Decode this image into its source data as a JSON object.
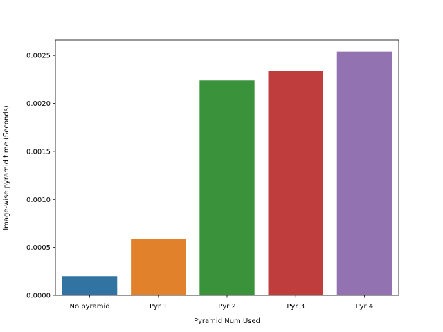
{
  "chart_data": {
    "type": "bar",
    "xlabel": "Pyramid Num Used",
    "ylabel": "Image-wise pyramid time (Seconds)",
    "categories": [
      "No pyramid",
      "Pyr 1",
      "Pyr 2",
      "Pyr 3",
      "Pyr 4"
    ],
    "values": [
      0.0002,
      0.00059,
      0.00224,
      0.00234,
      0.00254
    ],
    "colors": [
      "#3274a1",
      "#e1812c",
      "#3a923a",
      "#c03d3e",
      "#9372b2"
    ],
    "ylim": [
      0,
      0.00266
    ],
    "yticks": [
      0,
      0.0005,
      0.001,
      0.0015,
      0.002,
      0.0025
    ],
    "ytick_labels": [
      "0.0000",
      "0.0005",
      "0.0010",
      "0.0015",
      "0.0020",
      "0.0025"
    ],
    "grid": false,
    "legend": "none"
  }
}
